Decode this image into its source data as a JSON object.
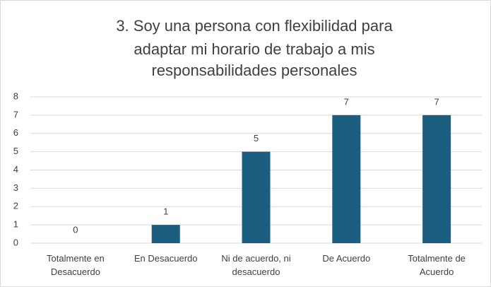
{
  "chart_data": {
    "type": "bar",
    "title": [
      "3. Soy una persona con flexibilidad para",
      "adaptar mi horario de trabajo a mis",
      "responsabilidades personales"
    ],
    "categories": [
      "Totalmente en Desacuerdo",
      "En Desacuerdo",
      "Ni de acuerdo, ni desacuerdo",
      "De Acuerdo",
      "Totalmente de Acuerdo"
    ],
    "values": [
      0,
      1,
      5,
      7,
      7
    ],
    "color": "#1b5e80",
    "ylim": [
      0,
      8
    ],
    "yticks": [
      0,
      1,
      2,
      3,
      4,
      5,
      6,
      7,
      8
    ],
    "grid": true
  }
}
